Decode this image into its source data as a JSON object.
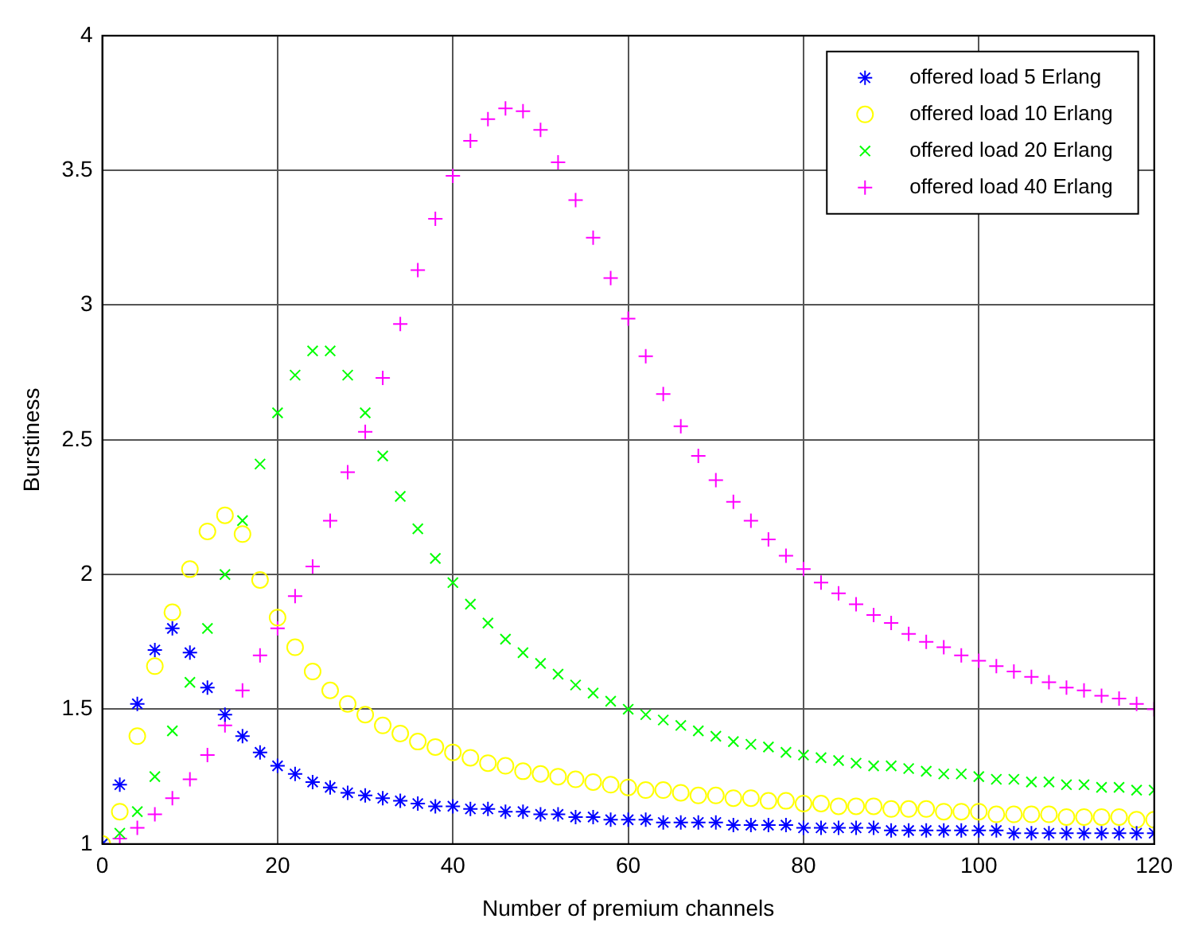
{
  "chart_data": {
    "type": "scatter",
    "xlabel": "Number of premium channels",
    "ylabel": "Burstiness",
    "x": [
      0,
      2,
      4,
      6,
      8,
      10,
      12,
      14,
      16,
      18,
      20,
      22,
      24,
      26,
      28,
      30,
      32,
      34,
      36,
      38,
      40,
      42,
      44,
      46,
      48,
      50,
      52,
      54,
      56,
      58,
      60,
      62,
      64,
      66,
      68,
      70,
      72,
      74,
      76,
      78,
      80,
      82,
      84,
      86,
      88,
      90,
      92,
      94,
      96,
      98,
      100,
      102,
      104,
      106,
      108,
      110,
      112,
      114,
      116,
      118,
      120
    ],
    "series": [
      {
        "name": "offered load 5 Erlang",
        "color": "#0000ff",
        "values": [
          1.0,
          1.22,
          1.52,
          1.72,
          1.8,
          1.71,
          1.58,
          1.48,
          1.4,
          1.34,
          1.29,
          1.26,
          1.23,
          1.21,
          1.19,
          1.18,
          1.17,
          1.16,
          1.15,
          1.14,
          1.14,
          1.13,
          1.13,
          1.12,
          1.12,
          1.11,
          1.11,
          1.1,
          1.1,
          1.09,
          1.09,
          1.09,
          1.08,
          1.08,
          1.08,
          1.08,
          1.07,
          1.07,
          1.07,
          1.07,
          1.06,
          1.06,
          1.06,
          1.06,
          1.06,
          1.05,
          1.05,
          1.05,
          1.05,
          1.05,
          1.05,
          1.05,
          1.04,
          1.04,
          1.04,
          1.04,
          1.04,
          1.04,
          1.04,
          1.04,
          1.04
        ]
      },
      {
        "name": "offered load 10 Erlang",
        "color": "#ffff00",
        "marker": "circle",
        "values": [
          1.0,
          1.12,
          1.4,
          1.66,
          1.86,
          2.02,
          2.16,
          2.22,
          2.15,
          1.98,
          1.84,
          1.73,
          1.64,
          1.57,
          1.52,
          1.48,
          1.44,
          1.41,
          1.38,
          1.36,
          1.34,
          1.32,
          1.3,
          1.29,
          1.27,
          1.26,
          1.25,
          1.24,
          1.23,
          1.22,
          1.21,
          1.2,
          1.2,
          1.19,
          1.18,
          1.18,
          1.17,
          1.17,
          1.16,
          1.16,
          1.15,
          1.15,
          1.14,
          1.14,
          1.14,
          1.13,
          1.13,
          1.13,
          1.12,
          1.12,
          1.12,
          1.11,
          1.11,
          1.11,
          1.11,
          1.1,
          1.1,
          1.1,
          1.1,
          1.09,
          1.09
        ]
      },
      {
        "name": "offered load 20 Erlang",
        "color": "#00ff00",
        "marker": "cross",
        "values": [
          1.0,
          1.04,
          1.12,
          1.25,
          1.42,
          1.6,
          1.8,
          2.0,
          2.2,
          2.41,
          2.6,
          2.74,
          2.83,
          2.83,
          2.74,
          2.6,
          2.44,
          2.29,
          2.17,
          2.06,
          1.97,
          1.89,
          1.82,
          1.76,
          1.71,
          1.67,
          1.63,
          1.59,
          1.56,
          1.53,
          1.5,
          1.48,
          1.46,
          1.44,
          1.42,
          1.4,
          1.38,
          1.37,
          1.36,
          1.34,
          1.33,
          1.32,
          1.31,
          1.3,
          1.29,
          1.29,
          1.28,
          1.27,
          1.26,
          1.26,
          1.25,
          1.24,
          1.24,
          1.23,
          1.23,
          1.22,
          1.22,
          1.21,
          1.21,
          1.2,
          1.2
        ]
      },
      {
        "name": "offered load 40 Erlang",
        "color": "#ff00ff",
        "marker": "plus",
        "values": [
          1.0,
          1.02,
          1.06,
          1.11,
          1.17,
          1.24,
          1.33,
          1.44,
          1.57,
          1.7,
          1.8,
          1.92,
          2.03,
          2.2,
          2.38,
          2.53,
          2.73,
          2.93,
          3.13,
          3.32,
          3.48,
          3.61,
          3.69,
          3.73,
          3.72,
          3.65,
          3.53,
          3.39,
          3.25,
          3.1,
          2.95,
          2.81,
          2.67,
          2.55,
          2.44,
          2.35,
          2.27,
          2.2,
          2.13,
          2.07,
          2.02,
          1.97,
          1.93,
          1.89,
          1.85,
          1.82,
          1.78,
          1.75,
          1.73,
          1.7,
          1.68,
          1.66,
          1.64,
          1.62,
          1.6,
          1.58,
          1.57,
          1.55,
          1.54,
          1.52,
          1.5
        ]
      }
    ],
    "xlim": [
      0,
      120
    ],
    "xticks": [
      0,
      20,
      40,
      60,
      80,
      100,
      120
    ],
    "ylim": [
      1,
      4
    ],
    "yticks": [
      1,
      1.5,
      2,
      2.5,
      3,
      3.5,
      4
    ],
    "grid": true,
    "legend": "top right",
    "line_style": "none"
  }
}
